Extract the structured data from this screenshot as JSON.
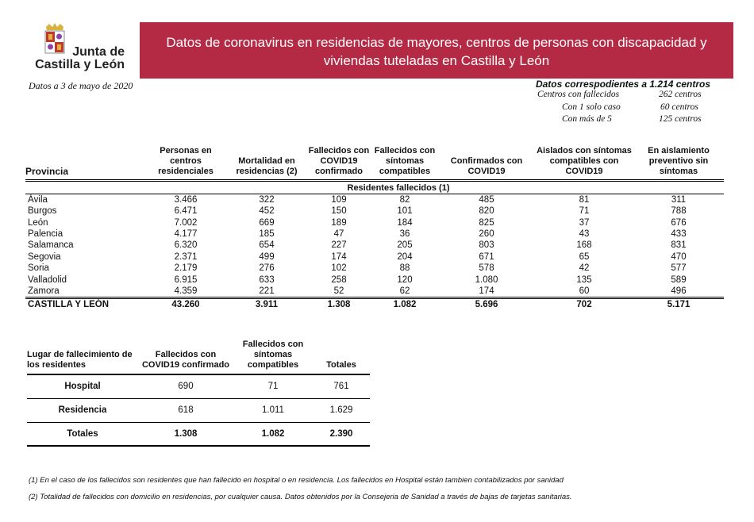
{
  "logo": {
    "text_line1": "Junta de",
    "text_line2": "Castilla y León"
  },
  "banner": {
    "line1": "Datos de coronavirus en residencias de mayores, centros de personas con discapacidad y",
    "line2": "viviendas tuteladas en Castilla y León"
  },
  "date": "Datos a 3 de mayo de 2020",
  "centros": {
    "title": "Datos correspodientes a 1.214 centros",
    "rows": [
      {
        "label": "Centros con fallecidos",
        "value": "262 centros"
      },
      {
        "label": "Con 1 solo caso",
        "value": "60 centros"
      },
      {
        "label": "Con más de 5",
        "value": "125 centros"
      }
    ]
  },
  "main_table": {
    "headers": [
      "Provincia",
      "Personas en centros residenciales",
      "Mortalidad en residencias (2)",
      "Fallecidos con COVID19 confirmado",
      "Fallecidos con síntomas compatibles",
      "Confirmados con COVID19",
      "Aislados con síntomas compatibles con COVID19",
      "En aislamiento preventivo sin síntomas"
    ],
    "subheader": "Residentes fallecidos (1)",
    "rows": [
      [
        "Ávila",
        "3.466",
        "322",
        "109",
        "82",
        "485",
        "81",
        "311"
      ],
      [
        "Burgos",
        "6.471",
        "452",
        "150",
        "101",
        "820",
        "71",
        "788"
      ],
      [
        "León",
        "7.002",
        "669",
        "189",
        "184",
        "825",
        "37",
        "676"
      ],
      [
        "Palencia",
        "4.177",
        "185",
        "47",
        "36",
        "260",
        "43",
        "433"
      ],
      [
        "Salamanca",
        "6.320",
        "654",
        "227",
        "205",
        "803",
        "168",
        "831"
      ],
      [
        "Segovia",
        "2.371",
        "499",
        "174",
        "204",
        "671",
        "65",
        "470"
      ],
      [
        "Soria",
        "2.179",
        "276",
        "102",
        "88",
        "578",
        "42",
        "577"
      ],
      [
        "Valladolid",
        "6.915",
        "633",
        "258",
        "120",
        "1.080",
        "135",
        "589"
      ],
      [
        "Zamora",
        "4.359",
        "221",
        "52",
        "62",
        "174",
        "60",
        "496"
      ]
    ],
    "total": [
      "CASTILLA Y LEÓN",
      "43.260",
      "3.911",
      "1.308",
      "1.082",
      "5.696",
      "702",
      "5.171"
    ]
  },
  "second_table": {
    "headers": [
      "Lugar de fallecimiento de los residentes",
      "Fallecidos con COVID19 confirmado",
      "Fallecidos con síntomas compatibles",
      "Totales"
    ],
    "rows": [
      [
        "Hospital",
        "690",
        "71",
        "761"
      ],
      [
        "Residencia",
        "618",
        "1.011",
        "1.629"
      ],
      [
        "Totales",
        "1.308",
        "1.082",
        "2.390"
      ]
    ]
  },
  "footnotes": [
    "(1) En el caso de los fallecidos son residentes que han fallecido en hospital o en residencia. Los fallecidos en Hospital están tambien contabilizados por sanidad",
    "(2) Totalidad de fallecidos con domicilio en residencias, por cualquier causa. Datos obtenidos por la Consejeria de Sanidad a través de bajas de tarjetas sanitarias."
  ],
  "colors": {
    "banner": "#b42a45"
  }
}
